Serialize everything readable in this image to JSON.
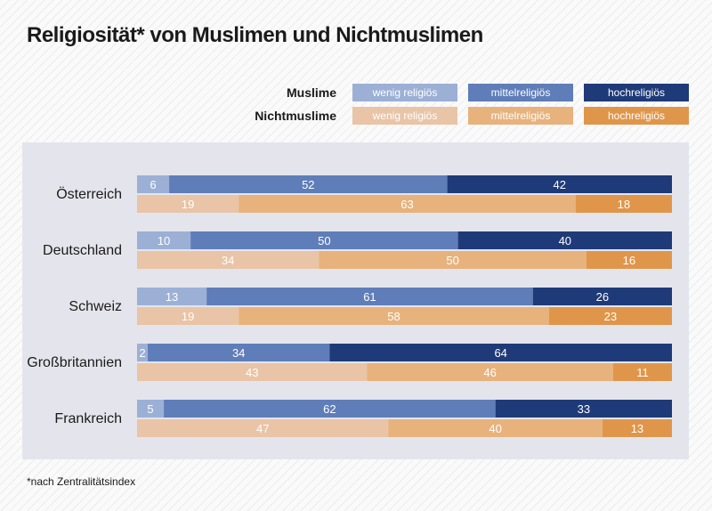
{
  "title": "Religiosität*  von Muslimen und Nichtmuslimen",
  "footnote": "*nach Zentralitätsindex",
  "legend": {
    "muslims_label": "Muslime",
    "nonmuslims_label": "Nichtmuslime",
    "muslims": [
      "wenig religiös",
      "mittelreligiös",
      "hochreligiös"
    ],
    "nonmuslims": [
      "wenig religiös",
      "mittelreligiös",
      "hochreligiös"
    ]
  },
  "colors": {
    "muslims": [
      "#9cb0d6",
      "#5f7db8",
      "#1f3a78"
    ],
    "nonmuslims": [
      "#e9c4a6",
      "#e8b27d",
      "#e0964a"
    ],
    "panel": "#e4e5ec",
    "text": "#1a1a1a"
  },
  "chart_data": {
    "type": "bar",
    "orientation": "horizontal",
    "stacked": true,
    "unit": "%",
    "xlim": [
      0,
      100
    ],
    "categories": [
      "Österreich",
      "Deutschland",
      "Schweiz",
      "Großbritannien",
      "Frankreich"
    ],
    "series": [
      {
        "group": "Muslime",
        "name": "wenig religiös",
        "values": [
          6,
          10,
          13,
          2,
          5
        ]
      },
      {
        "group": "Muslime",
        "name": "mittelreligiös",
        "values": [
          52,
          50,
          61,
          34,
          62
        ]
      },
      {
        "group": "Muslime",
        "name": "hochreligiös",
        "values": [
          42,
          40,
          26,
          64,
          33
        ]
      },
      {
        "group": "Nichtmuslime",
        "name": "wenig religiös",
        "values": [
          19,
          34,
          19,
          43,
          47
        ]
      },
      {
        "group": "Nichtmuslime",
        "name": "mittelreligiös",
        "values": [
          63,
          50,
          58,
          46,
          40
        ]
      },
      {
        "group": "Nichtmuslime",
        "name": "hochreligiös",
        "values": [
          18,
          16,
          23,
          11,
          13
        ]
      }
    ]
  }
}
